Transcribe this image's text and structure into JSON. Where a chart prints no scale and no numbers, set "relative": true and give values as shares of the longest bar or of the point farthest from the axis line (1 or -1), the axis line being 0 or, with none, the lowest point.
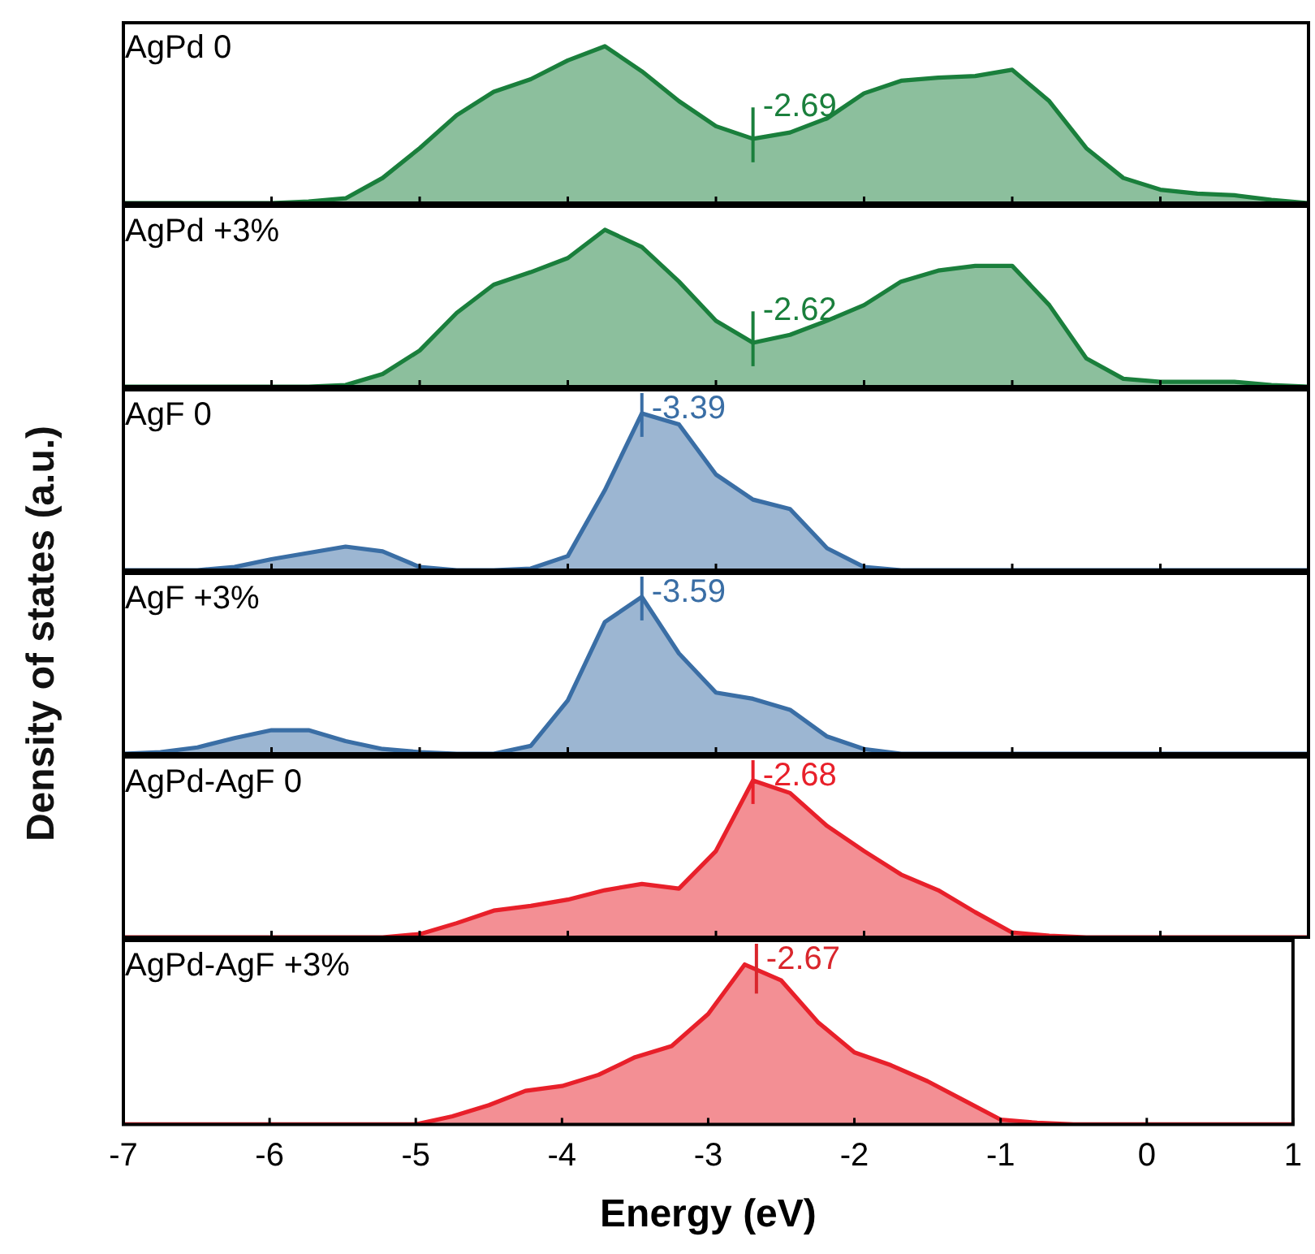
{
  "chart_data": [
    {
      "type": "area",
      "title": "AgPd 0",
      "ylabel": "Density of states (a.u.)",
      "relative": true,
      "tick_labels": false,
      "grid": false,
      "legend": false,
      "categories": [
        null,
        null,
        null,
        null,
        null,
        null,
        null,
        null,
        null,
        null,
        null,
        null,
        null,
        null,
        null,
        null,
        null,
        null,
        null,
        null,
        null,
        null,
        null,
        null,
        null,
        null,
        null,
        null,
        null,
        null,
        null,
        null,
        null
      ],
      "series": [
        {
          "color": "#1a7f3c",
          "values": [
            0,
            0,
            0,
            0,
            0,
            0.01,
            0.03,
            0.16,
            0.35,
            0.56,
            0.71,
            0.79,
            0.91,
            1,
            0.84,
            0.65,
            0.49,
            0.41,
            0.45,
            0.54,
            0.7,
            0.78,
            0.8,
            0.81,
            0.85,
            0.65,
            0.35,
            0.16,
            0.085,
            0.06,
            0.05,
            0.02,
            0
          ]
        }
      ],
      "annotations": [
        "-2.69"
      ]
    },
    {
      "type": "area",
      "title": "AgPd +3%",
      "relative": true,
      "tick_labels": false,
      "grid": false,
      "legend": false,
      "categories": [
        null,
        null,
        null,
        null,
        null,
        null,
        null,
        null,
        null,
        null,
        null,
        null,
        null,
        null,
        null,
        null,
        null,
        null,
        null,
        null,
        null,
        null,
        null,
        null,
        null,
        null,
        null,
        null,
        null,
        null,
        null,
        null,
        null
      ],
      "series": [
        {
          "color": "#1a7f3c",
          "values": [
            0,
            0,
            0,
            0,
            0,
            0,
            0.01,
            0.08,
            0.23,
            0.47,
            0.65,
            0.73,
            0.82,
            1,
            0.89,
            0.67,
            0.42,
            0.28,
            0.33,
            0.42,
            0.52,
            0.67,
            0.74,
            0.77,
            0.77,
            0.52,
            0.18,
            0.05,
            0.03,
            0.03,
            0.03,
            0.01,
            0
          ]
        }
      ],
      "annotations": [
        "-2.62"
      ]
    },
    {
      "type": "area",
      "title": "AgF 0",
      "relative": true,
      "tick_labels": false,
      "grid": false,
      "legend": false,
      "categories": [
        null,
        null,
        null,
        null,
        null,
        null,
        null,
        null,
        null,
        null,
        null,
        null,
        null,
        null,
        null,
        null,
        null,
        null,
        null,
        null,
        null,
        null,
        null,
        null,
        null,
        null,
        null,
        null,
        null,
        null,
        null,
        null,
        null
      ],
      "series": [
        {
          "color": "#3a6ea5",
          "values": [
            0,
            0,
            0,
            0.02,
            0.07,
            0.11,
            0.15,
            0.12,
            0.02,
            0,
            0,
            0.01,
            0.09,
            0.51,
            1,
            0.93,
            0.61,
            0.45,
            0.39,
            0.14,
            0.02,
            0,
            0,
            0,
            0,
            0,
            0,
            0,
            0,
            0,
            0,
            0,
            0
          ]
        }
      ],
      "annotations": [
        "-3.39"
      ]
    },
    {
      "type": "area",
      "title": "AgF +3%",
      "relative": true,
      "tick_labels": false,
      "grid": false,
      "legend": false,
      "categories": [
        null,
        null,
        null,
        null,
        null,
        null,
        null,
        null,
        null,
        null,
        null,
        null,
        null,
        null,
        null,
        null,
        null,
        null,
        null,
        null,
        null,
        null,
        null,
        null,
        null,
        null,
        null,
        null,
        null,
        null,
        null,
        null,
        null
      ],
      "series": [
        {
          "color": "#3a6ea5",
          "values": [
            0,
            0.01,
            0.04,
            0.1,
            0.15,
            0.15,
            0.08,
            0.03,
            0.01,
            0,
            0,
            0.05,
            0.34,
            0.84,
            1,
            0.64,
            0.39,
            0.35,
            0.28,
            0.11,
            0.03,
            0,
            0,
            0,
            0,
            0,
            0,
            0,
            0,
            0,
            0,
            0,
            0
          ]
        }
      ],
      "annotations": [
        "-3.59"
      ]
    },
    {
      "type": "area",
      "title": "AgPd-AgF 0",
      "relative": true,
      "tick_labels": false,
      "grid": false,
      "legend": false,
      "categories": [
        null,
        null,
        null,
        null,
        null,
        null,
        null,
        null,
        null,
        null,
        null,
        null,
        null,
        null,
        null,
        null,
        null,
        null,
        null,
        null,
        null,
        null,
        null,
        null,
        null,
        null,
        null,
        null,
        null,
        null,
        null,
        null,
        null
      ],
      "series": [
        {
          "color": "#e8202a",
          "values": [
            0,
            0,
            0,
            0,
            0,
            0,
            0,
            0,
            0.02,
            0.09,
            0.17,
            0.2,
            0.24,
            0.3,
            0.34,
            0.31,
            0.55,
            1,
            0.92,
            0.71,
            0.55,
            0.4,
            0.3,
            0.16,
            0.03,
            0.01,
            0,
            0,
            0,
            0,
            0,
            0,
            0
          ]
        }
      ],
      "annotations": [
        "-2.68"
      ]
    },
    {
      "type": "area",
      "title": "AgPd-AgF +3%",
      "xlabel": "Energy (eV)",
      "relative": true,
      "xlim": [
        -7,
        1
      ],
      "xticks": [
        -7,
        -6,
        -5,
        -4,
        -3,
        -2,
        -1,
        0,
        1
      ],
      "tick_labels": "x",
      "grid": false,
      "legend": false,
      "x": [
        -7,
        -6.75,
        -6.5,
        -6.25,
        -6,
        -5.75,
        -5.5,
        -5.25,
        -5,
        -4.75,
        -4.5,
        -4.25,
        -4,
        -3.75,
        -3.5,
        -3.25,
        -3,
        -2.75,
        -2.5,
        -2.25,
        -2,
        -1.75,
        -1.5,
        -1.25,
        -1,
        -0.75,
        -0.5,
        -0.25,
        0,
        0.25,
        0.5,
        0.75,
        1
      ],
      "series": [
        {
          "color": "#e8202a",
          "values": [
            0,
            0,
            0,
            0,
            0,
            0,
            0,
            0,
            0,
            0.05,
            0.12,
            0.21,
            0.24,
            0.31,
            0.42,
            0.49,
            0.69,
            1,
            0.9,
            0.64,
            0.45,
            0.37,
            0.27,
            0.15,
            0.03,
            0.01,
            0,
            0,
            0,
            0,
            0,
            0,
            0
          ]
        }
      ],
      "ref_lines": [
        {
          "axis": "x",
          "value": -2.67,
          "label": "-2.67",
          "color": "#d9262c"
        }
      ]
    }
  ]
}
